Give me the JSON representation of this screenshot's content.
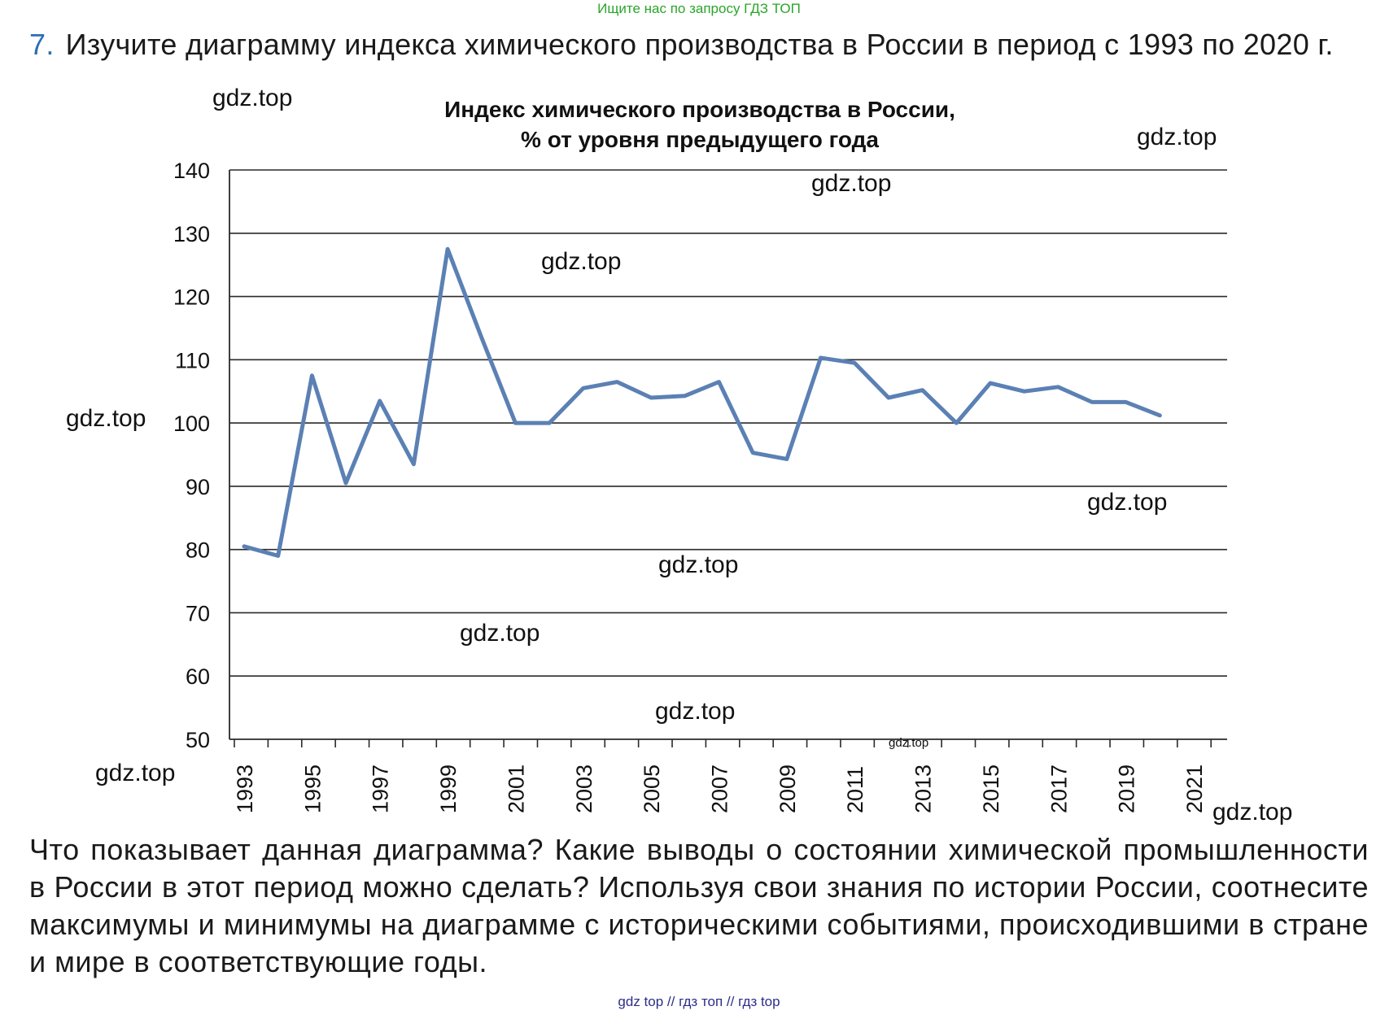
{
  "banner": "Ищите нас по запросу ГДЗ ТОП",
  "task": {
    "number": "7.",
    "text": "Изучите диаграмму индекса химического производства в России в период с 1993 по 2020 г."
  },
  "question": "Что показывает данная диаграмма? Какие выводы о состоянии химической про­мышленности в России в этот период можно сделать? Используя свои знания по истории России, соотнесите максимумы и минимумы на диаграмме с истори­ческими событиями, происходившими в стране и мире в соответствующие годы.",
  "footer": "gdz top  //  гдз топ  //  гдз top",
  "watermarks": [
    "gdz.top",
    "gdz.top",
    "gdz.top",
    "gdz.top",
    "gdz.top",
    "gdz.top",
    "gdz.top",
    "gdz.top",
    "gdz.top",
    "gdz.top",
    "gdz.top",
    "gdz.top"
  ],
  "chart_data": {
    "type": "line",
    "title_line1": "Индекс химического производства в России,",
    "title_line2": "% от уровня предыдущего года",
    "xlabel": "",
    "ylabel": "",
    "ylim": [
      50,
      140
    ],
    "yticks": [
      140,
      130,
      120,
      110,
      100,
      90,
      80,
      70,
      60,
      50
    ],
    "x_tick_labels": [
      "1993",
      "1995",
      "1997",
      "1999",
      "2001",
      "2003",
      "2005",
      "2007",
      "2009",
      "2011",
      "2013",
      "2015",
      "2017",
      "2019",
      "2021"
    ],
    "x_range": [
      1993,
      2021
    ],
    "grid": true,
    "line_color": "#5b80b4",
    "series": [
      {
        "name": "Индекс химического производства",
        "x": [
          1993,
          1994,
          1995,
          1996,
          1997,
          1998,
          1999,
          2000,
          2001,
          2002,
          2003,
          2004,
          2005,
          2006,
          2007,
          2008,
          2009,
          2010,
          2011,
          2012,
          2013,
          2014,
          2015,
          2016,
          2017,
          2018,
          2019,
          2020
        ],
        "values": [
          80.5,
          79,
          107.5,
          90.5,
          103.5,
          93.5,
          127.5,
          113.5,
          100,
          100,
          105.5,
          106.5,
          104,
          104.3,
          106.5,
          95.3,
          94.3,
          110.3,
          109.5,
          104,
          105.2,
          100,
          106.3,
          105,
          105.7,
          103.3,
          103.3,
          101.2
        ]
      }
    ]
  }
}
